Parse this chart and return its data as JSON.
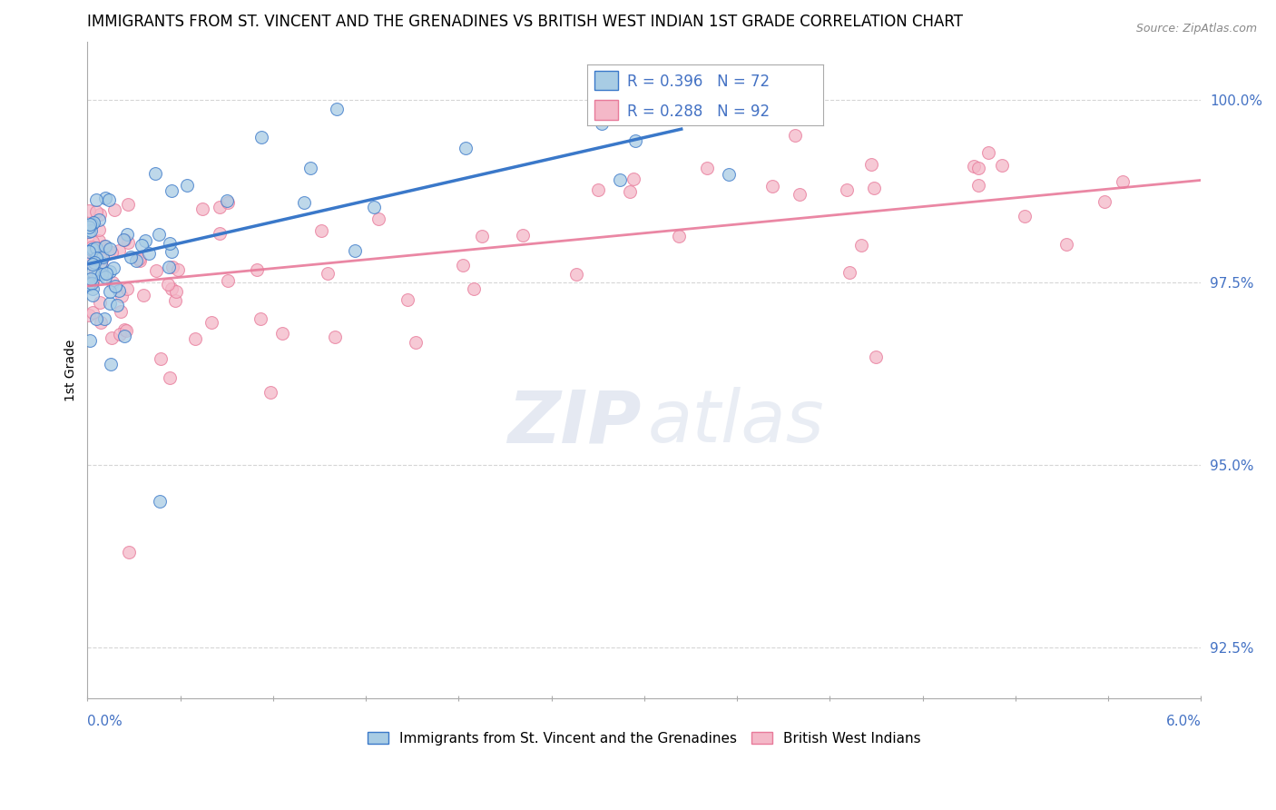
{
  "title": "IMMIGRANTS FROM ST. VINCENT AND THE GRENADINES VS BRITISH WEST INDIAN 1ST GRADE CORRELATION CHART",
  "source": "Source: ZipAtlas.com",
  "ylabel": "1st Grade",
  "xmin": 0.0,
  "xmax": 6.0,
  "ymin": 91.8,
  "ymax": 100.8,
  "yticks": [
    92.5,
    95.0,
    97.5,
    100.0
  ],
  "ytick_labels": [
    "92.5%",
    "95.0%",
    "97.5%",
    "100.0%"
  ],
  "r1": 0.396,
  "n1": 72,
  "r2": 0.288,
  "n2": 92,
  "color_blue": "#a8cce4",
  "color_pink": "#f4b8c8",
  "color_blue_line": "#3a78c9",
  "color_pink_line": "#e87a9a",
  "legend1": "Immigrants from St. Vincent and the Grenadines",
  "legend2": "British West Indians",
  "trend1_x0": 0.0,
  "trend1_y0": 97.75,
  "trend1_x1": 3.2,
  "trend1_y1": 99.6,
  "trend2_x0": 0.0,
  "trend2_y0": 97.45,
  "trend2_x1": 6.0,
  "trend2_y1": 98.9
}
